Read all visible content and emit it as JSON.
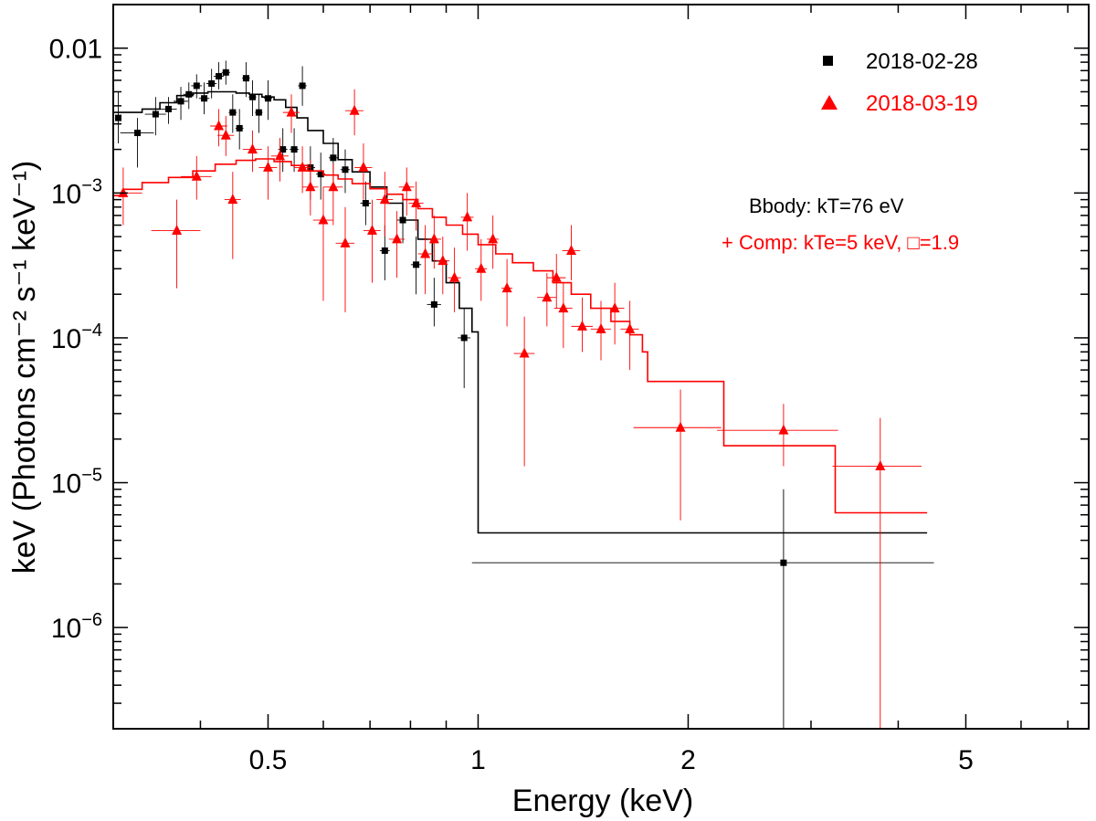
{
  "chart_data": {
    "type": "scatter",
    "xscale": "log",
    "yscale": "log",
    "xlabel": "Energy (keV)",
    "ylabel": "keV (Photons cm⁻² s⁻¹ keV⁻¹)",
    "xlim": [
      0.3,
      7.5
    ],
    "ylim": [
      2e-07,
      0.02
    ],
    "x_ticks": [
      {
        "value": 0.5,
        "label": "0.5"
      },
      {
        "value": 1,
        "label": "1"
      },
      {
        "value": 2,
        "label": "2"
      },
      {
        "value": 5,
        "label": "5"
      }
    ],
    "y_ticks": [
      {
        "value": 0.01,
        "label": "0.01"
      },
      {
        "value": 0.001,
        "mantissa": "10",
        "exp": "−3"
      },
      {
        "value": 0.0001,
        "mantissa": "10",
        "exp": "−4"
      },
      {
        "value": 1e-05,
        "mantissa": "10",
        "exp": "−5"
      },
      {
        "value": 1e-06,
        "mantissa": "10",
        "exp": "−6"
      }
    ],
    "annotations": {
      "line1": "Bbody: kT=76 eV",
      "line2": "+ Comp: kTe=5 keV, □=1.9",
      "line1_color": "#000000",
      "line2_color": "#ff0000"
    },
    "series": [
      {
        "name": "2018-02-28",
        "color": "#000000",
        "marker": "square",
        "points": [
          [
            0.305,
            0.0033,
            0.005,
            0.0022,
            0.0025
          ],
          [
            0.325,
            0.0026,
            0.0033,
            0.0015,
            0.018
          ],
          [
            0.345,
            0.0035,
            0.0046,
            0.0025,
            0.012
          ],
          [
            0.36,
            0.0038,
            0.0046,
            0.003,
            0.01
          ],
          [
            0.375,
            0.0043,
            0.0054,
            0.0032,
            0.009
          ],
          [
            0.385,
            0.0048,
            0.0058,
            0.0038,
            0.007
          ],
          [
            0.395,
            0.0055,
            0.0066,
            0.0045,
            0.007
          ],
          [
            0.405,
            0.0045,
            0.0058,
            0.0035,
            0.007
          ],
          [
            0.415,
            0.0057,
            0.0072,
            0.0045,
            0.007
          ],
          [
            0.425,
            0.0064,
            0.008,
            0.0052,
            0.007
          ],
          [
            0.435,
            0.0068,
            0.0082,
            0.0056,
            0.006
          ],
          [
            0.445,
            0.0036,
            0.0048,
            0.0026,
            0.006
          ],
          [
            0.455,
            0.0028,
            0.0038,
            0.002,
            0.006
          ],
          [
            0.465,
            0.0062,
            0.008,
            0.0046,
            0.006
          ],
          [
            0.475,
            0.0046,
            0.006,
            0.0034,
            0.006
          ],
          [
            0.485,
            0.0036,
            0.0048,
            0.0026,
            0.006
          ],
          [
            0.5,
            0.0045,
            0.006,
            0.0032,
            0.007
          ],
          [
            0.525,
            0.002,
            0.0028,
            0.0014,
            0.008
          ],
          [
            0.545,
            0.002,
            0.0028,
            0.0014,
            0.008
          ],
          [
            0.56,
            0.0055,
            0.0075,
            0.004,
            0.008
          ],
          [
            0.575,
            0.0015,
            0.0021,
            0.0009,
            0.009
          ],
          [
            0.595,
            0.00135,
            0.0019,
            0.0009,
            0.009
          ],
          [
            0.62,
            0.00175,
            0.0024,
            0.0012,
            0.009
          ],
          [
            0.645,
            0.00145,
            0.002,
            0.001,
            0.01
          ],
          [
            0.69,
            0.00085,
            0.0012,
            0.0006,
            0.012
          ],
          [
            0.735,
            0.0004,
            0.0006,
            0.00025,
            0.012
          ],
          [
            0.78,
            0.00065,
            0.0009,
            0.00045,
            0.014
          ],
          [
            0.815,
            0.00032,
            0.0005,
            0.0002,
            0.014
          ],
          [
            0.865,
            0.00017,
            0.00026,
            0.00012,
            0.02
          ],
          [
            0.955,
            0.0001,
            0.00016,
            4.5e-05,
            0.02
          ],
          [
            2.74,
            2.8e-06,
            9e-06,
            2e-07,
            1.76
          ]
        ],
        "model_steps": [
          [
            0.3,
            0.0036
          ],
          [
            0.31,
            0.0036
          ],
          [
            0.33,
            0.0038
          ],
          [
            0.35,
            0.0042
          ],
          [
            0.37,
            0.0047
          ],
          [
            0.39,
            0.0049
          ],
          [
            0.41,
            0.005
          ],
          [
            0.43,
            0.005
          ],
          [
            0.45,
            0.0049
          ],
          [
            0.47,
            0.0048
          ],
          [
            0.49,
            0.0046
          ],
          [
            0.51,
            0.0044
          ],
          [
            0.53,
            0.0039
          ],
          [
            0.55,
            0.0033
          ],
          [
            0.57,
            0.0027
          ],
          [
            0.6,
            0.0022
          ],
          [
            0.63,
            0.0017
          ],
          [
            0.66,
            0.0014
          ],
          [
            0.7,
            0.0011
          ],
          [
            0.74,
            0.00085
          ],
          [
            0.78,
            0.00065
          ],
          [
            0.82,
            0.00048
          ],
          [
            0.86,
            0.00034
          ],
          [
            0.9,
            0.00024
          ],
          [
            0.94,
            0.00016
          ],
          [
            0.98,
            0.00011
          ],
          [
            1.0,
            4.5e-06
          ],
          [
            4.4,
            4.5e-06
          ]
        ]
      },
      {
        "name": "2018-03-19",
        "color": "#ff0000",
        "marker": "triangle",
        "points": [
          [
            0.31,
            0.001,
            0.0015,
            0.0006,
            0.02
          ],
          [
            0.37,
            0.00055,
            0.0009,
            0.00022,
            0.03
          ],
          [
            0.395,
            0.0013,
            0.0018,
            0.0009,
            0.02
          ],
          [
            0.425,
            0.0029,
            0.0038,
            0.0021,
            0.012
          ],
          [
            0.435,
            0.0025,
            0.0034,
            0.0018,
            0.012
          ],
          [
            0.445,
            0.0009,
            0.0014,
            0.00035,
            0.012
          ],
          [
            0.475,
            0.002,
            0.0027,
            0.0014,
            0.015
          ],
          [
            0.5,
            0.0015,
            0.0021,
            0.0009,
            0.015
          ],
          [
            0.52,
            0.0018,
            0.0024,
            0.0012,
            0.015
          ],
          [
            0.54,
            0.0036,
            0.0048,
            0.0026,
            0.015
          ],
          [
            0.56,
            0.0015,
            0.0021,
            0.001,
            0.015
          ],
          [
            0.575,
            0.0011,
            0.0017,
            0.0007,
            0.015
          ],
          [
            0.6,
            0.00065,
            0.0011,
            0.00018,
            0.02
          ],
          [
            0.62,
            0.0011,
            0.0016,
            0.0006,
            0.02
          ],
          [
            0.645,
            0.00045,
            0.0008,
            0.00015,
            0.02
          ],
          [
            0.665,
            0.0037,
            0.0052,
            0.0025,
            0.02
          ],
          [
            0.685,
            0.0015,
            0.0022,
            0.0009,
            0.02
          ],
          [
            0.705,
            0.00055,
            0.0009,
            0.00024,
            0.02
          ],
          [
            0.735,
            0.0009,
            0.0014,
            0.0005,
            0.02
          ],
          [
            0.765,
            0.00048,
            0.00075,
            0.00026,
            0.02
          ],
          [
            0.79,
            0.0011,
            0.0015,
            0.0007,
            0.02
          ],
          [
            0.815,
            0.00085,
            0.0012,
            0.00055,
            0.02
          ],
          [
            0.84,
            0.00038,
            0.0006,
            0.0002,
            0.02
          ],
          [
            0.865,
            0.00048,
            0.0007,
            0.0003,
            0.02
          ],
          [
            0.89,
            0.00034,
            0.0005,
            0.0002,
            0.02
          ],
          [
            0.925,
            0.00026,
            0.00042,
            0.00015,
            0.02
          ],
          [
            0.965,
            0.00068,
            0.001,
            0.0004,
            0.02
          ],
          [
            1.01,
            0.0003,
            0.00048,
            0.00018,
            0.02
          ],
          [
            1.05,
            0.00048,
            0.0007,
            0.0003,
            0.02
          ],
          [
            1.1,
            0.00022,
            0.00035,
            0.00012,
            0.02
          ],
          [
            1.165,
            7.8e-05,
            0.00014,
            1.3e-05,
            0.04
          ],
          [
            1.255,
            0.00019,
            0.00028,
            0.00012,
            0.04
          ],
          [
            1.295,
            0.00026,
            0.00038,
            0.00016,
            0.04
          ],
          [
            1.325,
            0.00016,
            0.00024,
            8.5e-05,
            0.04
          ],
          [
            1.36,
            0.0004,
            0.0006,
            0.00025,
            0.04
          ],
          [
            1.41,
            0.00012,
            0.00019,
            8e-05,
            0.05
          ],
          [
            1.5,
            0.000115,
            0.00018,
            7e-05,
            0.05
          ],
          [
            1.57,
            0.00016,
            0.00024,
            9e-05,
            0.05
          ],
          [
            1.65,
            0.000115,
            0.00018,
            6e-05,
            0.05
          ],
          [
            1.95,
            2.4e-05,
            4.4e-05,
            5.5e-06,
            0.28
          ],
          [
            2.74,
            2.3e-05,
            3.5e-05,
            1.3e-05,
            0.54
          ],
          [
            3.77,
            1.3e-05,
            2.8e-05,
            2e-07,
            0.55
          ]
        ],
        "model_steps": [
          [
            0.3,
            0.00096
          ],
          [
            0.31,
            0.00106
          ],
          [
            0.33,
            0.00118
          ],
          [
            0.36,
            0.00128
          ],
          [
            0.39,
            0.00142
          ],
          [
            0.42,
            0.00158
          ],
          [
            0.45,
            0.00168
          ],
          [
            0.48,
            0.00172
          ],
          [
            0.51,
            0.00165
          ],
          [
            0.54,
            0.00155
          ],
          [
            0.57,
            0.00142
          ],
          [
            0.6,
            0.00133
          ],
          [
            0.63,
            0.00125
          ],
          [
            0.66,
            0.00116
          ],
          [
            0.7,
            0.00107
          ],
          [
            0.74,
            0.00098
          ],
          [
            0.78,
            0.0009
          ],
          [
            0.82,
            0.00078
          ],
          [
            0.86,
            0.00068
          ],
          [
            0.9,
            0.0006
          ],
          [
            0.95,
            0.00052
          ],
          [
            1.0,
            0.00044
          ],
          [
            1.06,
            0.00038
          ],
          [
            1.12,
            0.00033
          ],
          [
            1.2,
            0.00029
          ],
          [
            1.28,
            0.00024
          ],
          [
            1.36,
            0.0002
          ],
          [
            1.45,
            0.00016
          ],
          [
            1.55,
            0.00013
          ],
          [
            1.65,
            0.000105
          ],
          [
            1.72,
            8e-05
          ],
          [
            1.75,
            5e-05
          ],
          [
            2.25,
            1.8e-05
          ],
          [
            3.25,
            6.2e-06
          ],
          [
            4.4,
            6.2e-06
          ]
        ]
      }
    ]
  }
}
